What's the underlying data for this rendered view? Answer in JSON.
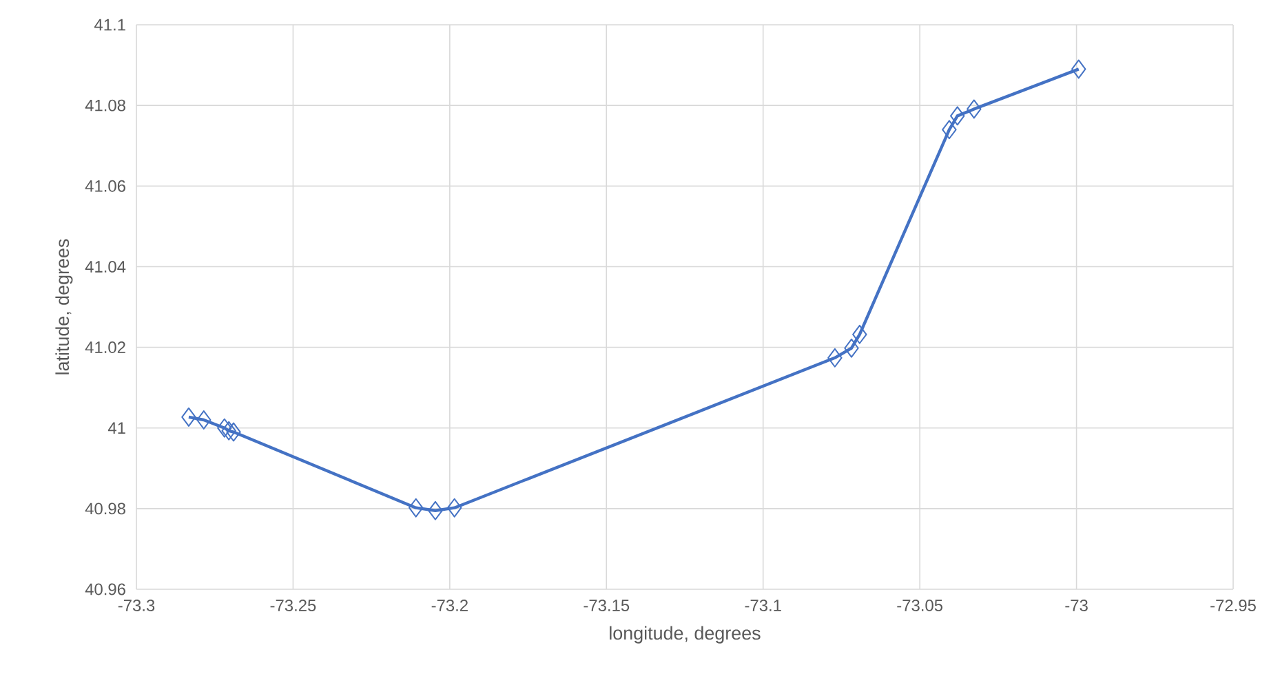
{
  "chart_data": {
    "type": "line",
    "xlabel": "longitude, degrees",
    "ylabel": "latitude, degrees",
    "x": [
      -73.2833,
      -73.2785,
      -73.2719,
      -73.2705,
      -73.269,
      -73.2108,
      -73.2046,
      -73.1985,
      -73.0771,
      -73.0718,
      -73.0692,
      -73.0406,
      -73.038,
      -73.0327,
      -72.9993
    ],
    "series": [
      {
        "color": "#4472c4",
        "values": [
          41.0027,
          41.002,
          41.0,
          40.9993,
          40.999,
          40.9802,
          40.9795,
          40.9802,
          41.0174,
          41.0198,
          41.0232,
          41.074,
          41.0774,
          41.0791,
          41.089
        ]
      }
    ],
    "xlim": [
      -73.3,
      -72.95
    ],
    "xticks": [
      -73.3,
      -73.25,
      -73.2,
      -73.15,
      -73.1,
      -73.05,
      -73,
      -72.95
    ],
    "ylim": [
      40.96,
      41.1
    ],
    "yticks": [
      40.96,
      40.98,
      41,
      41.02,
      41.04,
      41.06,
      41.08,
      41.1
    ],
    "grid": true,
    "marker": "diamond",
    "line_style": "solid"
  }
}
